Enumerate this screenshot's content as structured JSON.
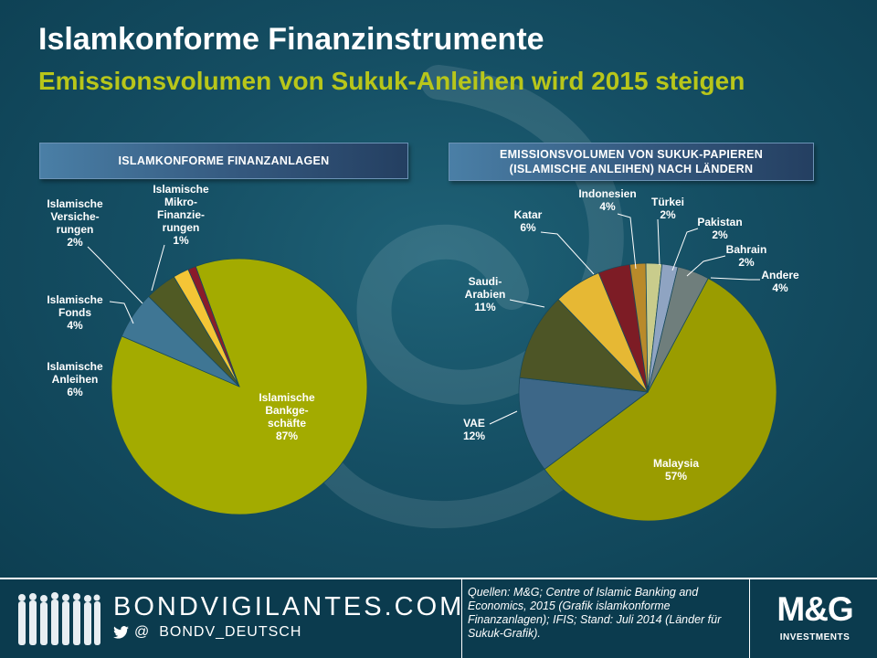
{
  "title": "Islamkonforme Finanzinstrumente",
  "subtitle": "Emissionsvolumen von Sukuk-Anleihen wird 2015 steigen",
  "colors": {
    "title": "#ffffff",
    "subtitle": "#b8c61a",
    "background": "#0f4a5e"
  },
  "chart_data": [
    {
      "type": "pie",
      "title": "ISLAMKONFORME FINANZANLAGEN",
      "title_lines": [
        "ISLAMKONFORME FINANZANLAGEN"
      ],
      "slices": [
        {
          "label": "Islamische\nBankge-\nschäfte",
          "value": 87,
          "value_label": "87%",
          "color": "#a3ab00"
        },
        {
          "label": "Islamische\nAnleihen",
          "value": 6,
          "value_label": "6%",
          "color": "#3f7694"
        },
        {
          "label": "Islamische\nFonds",
          "value": 4,
          "value_label": "4%",
          "color": "#505a24"
        },
        {
          "label": "Islamische\nVersiche-\nrungen",
          "value": 2,
          "value_label": "2%",
          "color": "#f4c536"
        },
        {
          "label": "Islamische\nMikro-\nFinanzie-\nrungen",
          "value": 1,
          "value_label": "1%",
          "color": "#8a1b2a"
        }
      ]
    },
    {
      "type": "pie",
      "title": "EMISSIONSVOLUMEN VON SUKUK-PAPIEREN (ISLAMISCHE ANLEIHEN) NACH LÄNDERN",
      "title_lines": [
        "EMISSIONSVOLUMEN VON SUKUK-PAPIEREN",
        "(ISLAMISCHE ANLEIHEN) NACH LÄNDERN"
      ],
      "slices": [
        {
          "label": "Malaysia",
          "value": 57,
          "value_label": "57%",
          "color": "#9a9c00"
        },
        {
          "label": "VAE",
          "value": 12,
          "value_label": "12%",
          "color": "#3d6788"
        },
        {
          "label": "Saudi-\nArabien",
          "value": 11,
          "value_label": "11%",
          "color": "#4d5526"
        },
        {
          "label": "Katar",
          "value": 6,
          "value_label": "6%",
          "color": "#e6b834"
        },
        {
          "label": "Indonesien",
          "value": 4,
          "value_label": "4%",
          "color": "#7d1c25"
        },
        {
          "label": "Türkei",
          "value": 2,
          "value_label": "2%",
          "color": "#b98a2a"
        },
        {
          "label": "Pakistan",
          "value": 2,
          "value_label": "2%",
          "color": "#c9cc8c"
        },
        {
          "label": "Bahrain",
          "value": 2,
          "value_label": "2%",
          "color": "#8fa4c2"
        },
        {
          "label": "Andere",
          "value": 4,
          "value_label": "4%",
          "color": "#6f7e7c"
        }
      ]
    }
  ],
  "footer": {
    "brand": "BONDVIGILANTES.COM",
    "handle_prefix": "@",
    "handle": "BONDV_DEUTSCH",
    "sources": "Quellen: M&G; Centre of Islamic Banking and Economics, 2015 (Grafik islamkonforme Finanzanlagen);  IFIS; Stand: Juli 2014 (Länder für Sukuk-Grafik).",
    "logo": "M&G",
    "logo_sub": "INVESTMENTS",
    "icons": [
      "people-group-icon",
      "twitter-bird-icon",
      "mg-logo-icon"
    ]
  }
}
